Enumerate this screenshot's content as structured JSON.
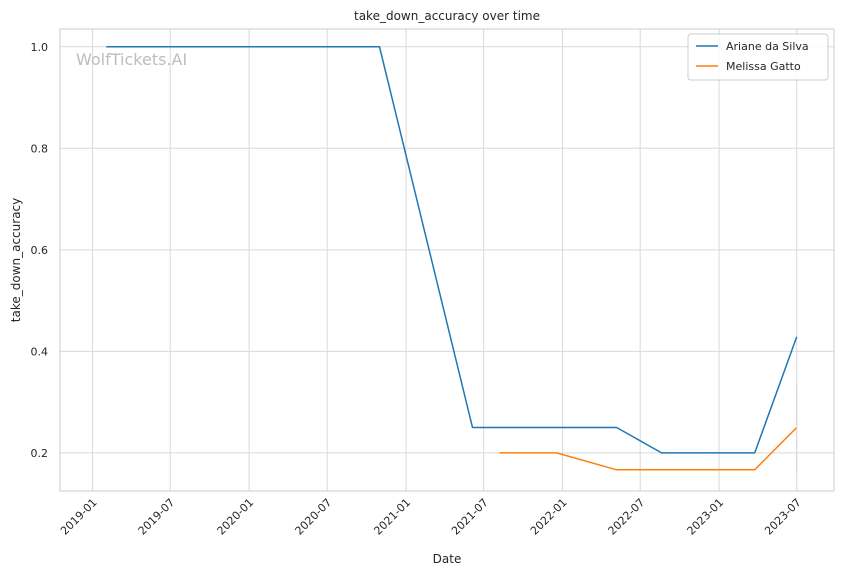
{
  "chart_data": {
    "type": "line",
    "title": "take_down_accuracy over time",
    "xlabel": "Date",
    "ylabel": "take_down_accuracy",
    "watermark": "WolfTickets.AI",
    "x_ticks": [
      "2019-01",
      "2019-07",
      "2020-01",
      "2020-07",
      "2021-01",
      "2021-07",
      "2022-01",
      "2022-07",
      "2023-01",
      "2023-07"
    ],
    "y_ticks": [
      0.2,
      0.4,
      0.6,
      0.8,
      1.0
    ],
    "y_tick_labels": [
      "0.2",
      "0.4",
      "0.6",
      "0.8",
      "1.0"
    ],
    "xlim": [
      "2018-10-17",
      "2023-09-26"
    ],
    "ylim": [
      0.125,
      1.035
    ],
    "grid": true,
    "legend_position": "top-right",
    "series": [
      {
        "name": "Ariane da Silva",
        "color": "#1f77b4",
        "points": [
          {
            "x": "2019-02-02",
            "y": 1.0
          },
          {
            "x": "2020-10-31",
            "y": 1.0
          },
          {
            "x": "2021-06-05",
            "y": 0.25
          },
          {
            "x": "2022-05-07",
            "y": 0.25
          },
          {
            "x": "2022-08-20",
            "y": 0.2
          },
          {
            "x": "2023-03-25",
            "y": 0.2
          },
          {
            "x": "2023-07-01",
            "y": 0.4286
          }
        ]
      },
      {
        "name": "Melissa Gatto",
        "color": "#ff7f0e",
        "points": [
          {
            "x": "2021-08-07",
            "y": 0.2
          },
          {
            "x": "2021-12-18",
            "y": 0.2
          },
          {
            "x": "2022-05-07",
            "y": 0.1667
          },
          {
            "x": "2023-03-25",
            "y": 0.1667
          },
          {
            "x": "2023-07-01",
            "y": 0.25
          }
        ]
      }
    ]
  }
}
